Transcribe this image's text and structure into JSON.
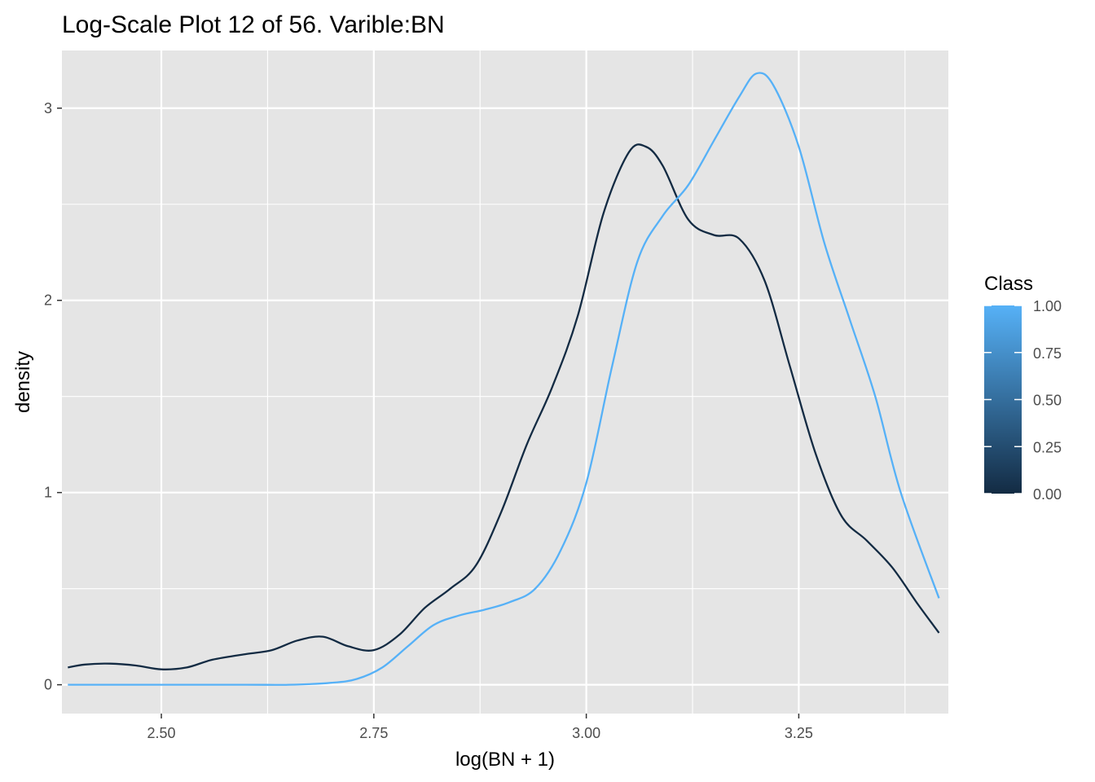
{
  "chart_data": {
    "type": "line",
    "title": "Log-Scale Plot 12 of 56. Varible:BN",
    "xlabel": "log(BN + 1)",
    "ylabel": "density",
    "xlim": [
      2.383,
      3.426
    ],
    "ylim": [
      -0.15,
      3.3
    ],
    "x_ticks": [
      2.5,
      2.75,
      3.0,
      3.25
    ],
    "x_tick_labels": [
      "2.50",
      "2.75",
      "3.00",
      "3.25"
    ],
    "y_ticks": [
      0,
      1,
      2,
      3
    ],
    "y_tick_labels": [
      "0",
      "1",
      "2",
      "3"
    ],
    "grid": true,
    "background": "#e5e5e5",
    "legend": {
      "title": "Class",
      "type": "colorbar",
      "position": "right",
      "labels": [
        "1.00",
        "0.75",
        "0.50",
        "0.25",
        "0.00"
      ],
      "values": [
        1.0,
        0.75,
        0.5,
        0.25,
        0.0
      ],
      "low_color": "#132b43",
      "high_color": "#56b1f7"
    },
    "series": [
      {
        "class": 0,
        "color": "#132b43",
        "x": [
          2.39,
          2.41,
          2.44,
          2.47,
          2.5,
          2.53,
          2.56,
          2.6,
          2.63,
          2.66,
          2.69,
          2.72,
          2.75,
          2.78,
          2.81,
          2.84,
          2.87,
          2.9,
          2.93,
          2.96,
          2.99,
          3.02,
          3.05,
          3.07,
          3.09,
          3.12,
          3.15,
          3.18,
          3.21,
          3.24,
          3.27,
          3.3,
          3.33,
          3.36,
          3.39,
          3.415
        ],
        "y": [
          0.09,
          0.105,
          0.11,
          0.1,
          0.08,
          0.09,
          0.13,
          0.16,
          0.18,
          0.23,
          0.25,
          0.2,
          0.18,
          0.26,
          0.4,
          0.5,
          0.62,
          0.9,
          1.25,
          1.55,
          1.92,
          2.45,
          2.77,
          2.8,
          2.7,
          2.42,
          2.34,
          2.32,
          2.1,
          1.65,
          1.2,
          0.88,
          0.75,
          0.61,
          0.42,
          0.27
        ]
      },
      {
        "class": 1,
        "color": "#56b1f7",
        "x": [
          2.39,
          2.5,
          2.6,
          2.65,
          2.7,
          2.73,
          2.76,
          2.79,
          2.82,
          2.85,
          2.88,
          2.91,
          2.94,
          2.97,
          3.0,
          3.03,
          3.06,
          3.09,
          3.12,
          3.15,
          3.18,
          3.2,
          3.22,
          3.25,
          3.28,
          3.31,
          3.34,
          3.37,
          3.415
        ],
        "y": [
          0.0,
          0.0,
          0.0,
          0.0,
          0.01,
          0.03,
          0.09,
          0.2,
          0.31,
          0.36,
          0.39,
          0.43,
          0.5,
          0.7,
          1.05,
          1.65,
          2.2,
          2.44,
          2.6,
          2.83,
          3.06,
          3.18,
          3.12,
          2.8,
          2.3,
          1.9,
          1.5,
          1.0,
          0.45
        ]
      }
    ]
  }
}
